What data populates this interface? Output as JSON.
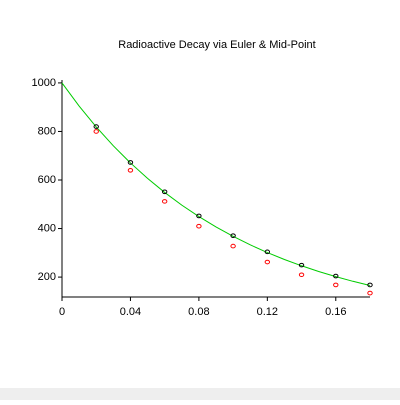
{
  "chart_data": {
    "type": "line",
    "title": "Radioactive Decay via Euler & Mid-Point",
    "xlim": [
      0,
      0.18
    ],
    "xticks": [
      0,
      0.04,
      0.08,
      0.12,
      0.16
    ],
    "ylim": [
      118,
      1012
    ],
    "yticks": [
      200,
      400,
      600,
      800,
      1000
    ],
    "series": [
      {
        "style": "line",
        "color": "#00cc00",
        "x": [
          0,
          0.01,
          0.02,
          0.03,
          0.04,
          0.05,
          0.06,
          0.07,
          0.08,
          0.09,
          0.1,
          0.11,
          0.12,
          0.13,
          0.14,
          0.15,
          0.16,
          0.17,
          0.18
        ],
        "values": [
          1000,
          904.8,
          818.7,
          740.8,
          670.3,
          606.5,
          548.8,
          496.6,
          449.3,
          406.6,
          367.9,
          332.9,
          301.2,
          272.5,
          246.6,
          223.1,
          201.9,
          182.7,
          165.3
        ]
      },
      {
        "style": "points",
        "color": "#000000",
        "x": [
          0.02,
          0.04,
          0.06,
          0.08,
          0.1,
          0.12,
          0.14,
          0.16,
          0.18
        ],
        "values": [
          820,
          672.4,
          551.4,
          452.1,
          370.7,
          304,
          249.3,
          204.4,
          167.6
        ]
      },
      {
        "style": "points",
        "color": "#ff0000",
        "x": [
          0.02,
          0.04,
          0.06,
          0.08,
          0.1,
          0.12,
          0.14,
          0.16,
          0.18
        ],
        "values": [
          800,
          640,
          512,
          409.6,
          327.7,
          262.1,
          209.7,
          167.8,
          134.2
        ]
      }
    ]
  }
}
